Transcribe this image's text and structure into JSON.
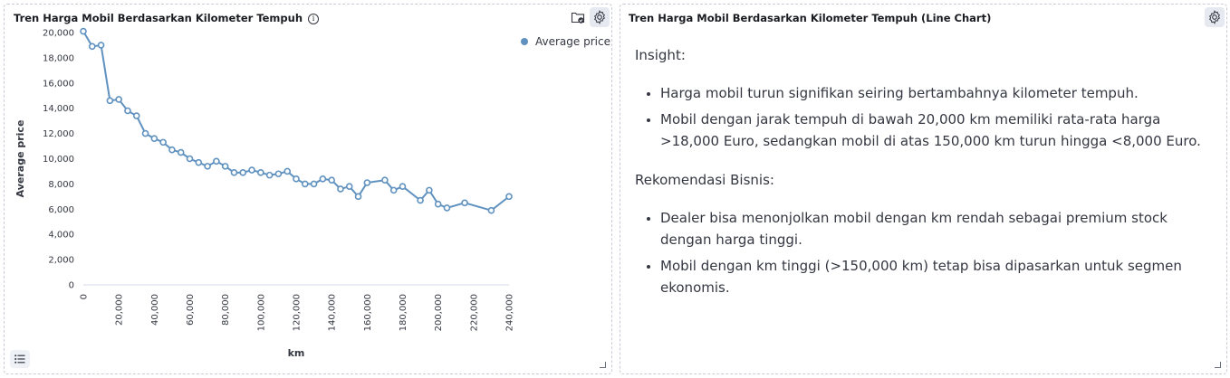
{
  "left_panel": {
    "title": "Tren Harga Mobil Berdasarkan Kilometer Tempuh",
    "info_icon_glyph": "i"
  },
  "right_panel": {
    "title": "Tren Harga Mobil Berdasarkan Kilometer Tempuh (Line Chart)",
    "insight_heading": "Insight:",
    "insight_items": [
      "Harga mobil turun signifikan seiring bertambahnya kilometer tempuh.",
      "Mobil dengan jarak tempuh di bawah 20,000 km memiliki rata-rata harga >18,000 Euro, sedangkan mobil di atas 150,000 km turun hingga <8,000 Euro."
    ],
    "recommendation_heading": "Rekomendasi Bisnis:",
    "recommendation_items": [
      "Dealer bisa menonjolkan mobil dengan km rendah sebagai premium stock dengan harga tinggi.",
      "Mobil dengan km tinggi (>150,000 km) tetap bisa dipasarkan untuk segmen ekonomis."
    ]
  },
  "colors": {
    "series": "#6092c0",
    "axis_text": "#343741",
    "grid": "#eef0f3"
  },
  "icons": [
    "info-icon",
    "folder-check-icon",
    "gear-icon",
    "list-icon",
    "resize-icon"
  ],
  "chart_data": {
    "type": "line",
    "xlabel": "km",
    "ylabel": "Average price",
    "xlim": [
      0,
      240000
    ],
    "ylim": [
      0,
      20000
    ],
    "x_ticks": [
      "0",
      "20,000",
      "40,000",
      "60,000",
      "80,000",
      "100,000",
      "120,000",
      "140,000",
      "160,000",
      "180,000",
      "200,000",
      "220,000",
      "240,000"
    ],
    "y_ticks": [
      "0",
      "2,000",
      "4,000",
      "6,000",
      "8,000",
      "10,000",
      "12,000",
      "14,000",
      "16,000",
      "18,000",
      "20,000"
    ],
    "legend_position": "top-right",
    "series": [
      {
        "name": "Average price",
        "x": [
          0,
          5000,
          10000,
          15000,
          20000,
          25000,
          30000,
          35000,
          40000,
          45000,
          50000,
          55000,
          60000,
          65000,
          70000,
          75000,
          80000,
          85000,
          90000,
          95000,
          100000,
          105000,
          110000,
          115000,
          120000,
          125000,
          130000,
          135000,
          140000,
          145000,
          150000,
          155000,
          160000,
          170000,
          175000,
          180000,
          190000,
          195000,
          200000,
          205000,
          215000,
          230000,
          240000
        ],
        "values": [
          20100,
          18900,
          19000,
          14600,
          14700,
          13800,
          13400,
          12000,
          11600,
          11300,
          10700,
          10500,
          10000,
          9700,
          9400,
          9800,
          9400,
          8900,
          8900,
          9100,
          8900,
          8700,
          8800,
          9000,
          8400,
          8000,
          8000,
          8400,
          8300,
          7600,
          7800,
          7000,
          8100,
          8300,
          7500,
          7800,
          6700,
          7500,
          6400,
          6100,
          6500,
          5900,
          7000
        ]
      }
    ]
  }
}
